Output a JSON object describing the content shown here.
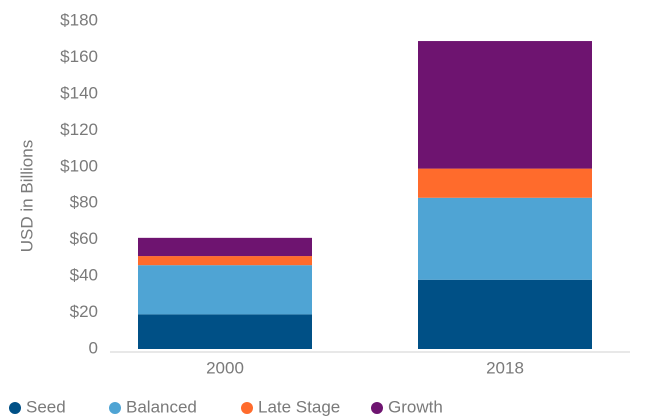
{
  "chart_data": {
    "type": "stacked_bar",
    "y_label": "USD in Billions",
    "categories": [
      "2000",
      "2018"
    ],
    "series": [
      {
        "name": "Seed",
        "color": "#005086",
        "values": [
          19,
          38
        ]
      },
      {
        "name": "Balanced",
        "color": "#4fa4d4",
        "values": [
          27,
          45
        ]
      },
      {
        "name": "Late Stage",
        "color": "#ff6b2c",
        "values": [
          5,
          16
        ]
      },
      {
        "name": "Growth",
        "color": "#6e1470",
        "values": [
          10,
          70
        ]
      }
    ],
    "ylim": [
      0,
      180
    ],
    "yticks": [
      0,
      {
        "value": 20,
        "label": "$20"
      },
      {
        "value": 40,
        "label": "$40"
      },
      {
        "value": 60,
        "label": "$60"
      },
      {
        "value": 80,
        "label": "$80"
      },
      {
        "value": 100,
        "label": "$100"
      },
      {
        "value": 120,
        "label": "$120"
      },
      {
        "value": 140,
        "label": "$140"
      },
      {
        "value": 160,
        "label": "$160"
      },
      {
        "value": 180,
        "label": "$180"
      }
    ],
    "legend": "bottom"
  }
}
